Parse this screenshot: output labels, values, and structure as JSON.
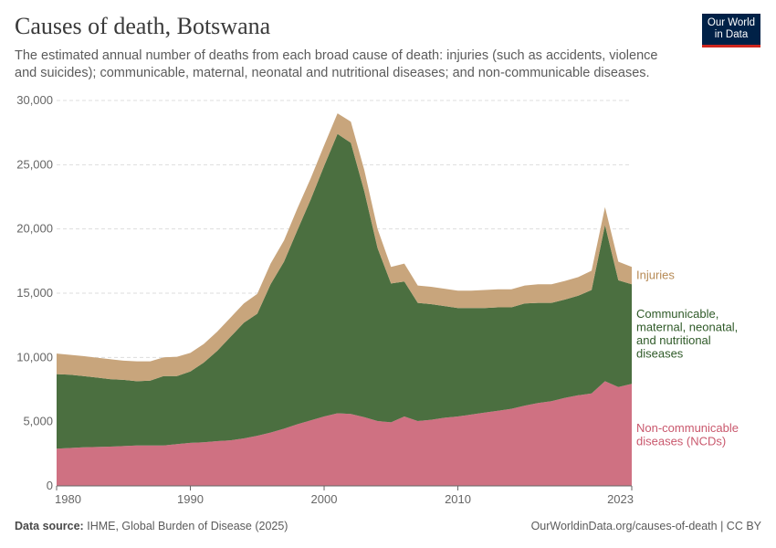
{
  "header": {
    "title": "Causes of death, Botswana",
    "subtitle": "The estimated annual number of deaths from each broad cause of death: injuries (such as accidents, violence and suicides); communicable, maternal, neonatal and nutritional diseases; and non-communicable diseases."
  },
  "logo": {
    "line1": "Our World",
    "line2": "in Data"
  },
  "footer": {
    "source_label": "Data source:",
    "source_text": "IHME, Global Burden of Disease (2025)",
    "url": "OurWorldinData.org/causes-of-death | CC BY"
  },
  "chart_data": {
    "type": "area",
    "stacked": true,
    "title": "Causes of death, Botswana",
    "x": [
      1980,
      1981,
      1982,
      1983,
      1984,
      1985,
      1986,
      1987,
      1988,
      1989,
      1990,
      1991,
      1992,
      1993,
      1994,
      1995,
      1996,
      1997,
      1998,
      1999,
      2000,
      2001,
      2002,
      2003,
      2004,
      2005,
      2006,
      2007,
      2008,
      2009,
      2010,
      2011,
      2012,
      2013,
      2014,
      2015,
      2016,
      2017,
      2018,
      2019,
      2020,
      2021,
      2022,
      2023
    ],
    "xlim": [
      1980,
      2023
    ],
    "ylim": [
      0,
      30000
    ],
    "x_ticks": [
      "1980",
      "1990",
      "2000",
      "2010",
      "2023"
    ],
    "y_ticks": [
      "0",
      "5,000",
      "10,000",
      "15,000",
      "20,000",
      "25,000",
      "30,000"
    ],
    "grid": true,
    "series": [
      {
        "name": "Non-communicable diseases (NCDs)",
        "label_lines": [
          "Non-communicable",
          "diseases (NCDs)"
        ],
        "color": "#cf7182",
        "values": [
          2900,
          2950,
          3000,
          3030,
          3060,
          3100,
          3150,
          3150,
          3150,
          3250,
          3350,
          3400,
          3480,
          3550,
          3700,
          3900,
          4150,
          4450,
          4800,
          5100,
          5400,
          5650,
          5600,
          5350,
          5050,
          4950,
          5400,
          5050,
          5150,
          5300,
          5400,
          5550,
          5700,
          5850,
          6000,
          6250,
          6450,
          6600,
          6850,
          7050,
          7200,
          8150,
          7700,
          7950
        ]
      },
      {
        "name": "Communicable, maternal, neonatal, and nutritional diseases",
        "label_lines": [
          "Communicable,",
          "maternal, neonatal,",
          "and nutritional",
          "diseases"
        ],
        "color": "#4b6f40",
        "values": [
          5800,
          5700,
          5550,
          5400,
          5250,
          5150,
          5000,
          5050,
          5400,
          5300,
          5550,
          6200,
          7020,
          8050,
          9000,
          9500,
          11550,
          13000,
          15100,
          17200,
          19500,
          21750,
          21100,
          17600,
          13450,
          10800,
          10500,
          9200,
          9000,
          8700,
          8450,
          8300,
          8150,
          8050,
          7900,
          7950,
          7800,
          7650,
          7650,
          7750,
          8050,
          12150,
          8300,
          7750
        ]
      },
      {
        "name": "Injuries",
        "label_lines": [
          "Injuries"
        ],
        "color": "#c8a57c",
        "values": [
          1600,
          1550,
          1550,
          1550,
          1550,
          1500,
          1550,
          1500,
          1450,
          1500,
          1450,
          1450,
          1500,
          1500,
          1500,
          1550,
          1600,
          1650,
          1700,
          1650,
          1600,
          1600,
          1650,
          1650,
          1500,
          1300,
          1400,
          1350,
          1350,
          1350,
          1350,
          1350,
          1400,
          1400,
          1400,
          1400,
          1450,
          1450,
          1450,
          1450,
          1500,
          1400,
          1450,
          1350
        ]
      }
    ]
  }
}
